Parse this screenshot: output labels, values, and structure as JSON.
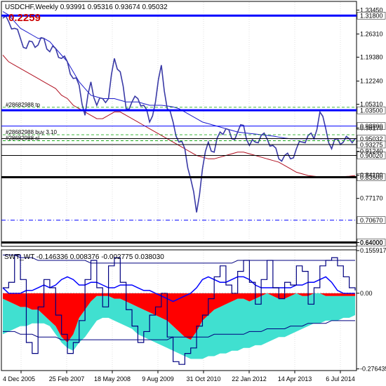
{
  "colors": {
    "price": "#3a3aa6",
    "ma_slow": "#1a1acc",
    "ma_fast": "#b01020",
    "level_blue": "#0000ff",
    "level_black": "#000000",
    "red_area": "#ff0000",
    "cyan_area": "#40e0d0",
    "osc_line": "#000080",
    "grid": "#c0c0c0",
    "badge_bg": "#ffffff",
    "badge_text": "#000000",
    "label_text": "#000000"
  },
  "header": {
    "symbol_line": "USDCHF,Weekly  0.93991 0.95316 0.93674 0.95032",
    "big_value": "0.2259",
    "indicator_line": "SWT_WT -0.146336 0.008376 -0.002775 0.038030"
  },
  "chart_data": [
    {
      "type": "line",
      "title": "USDCHF,Weekly",
      "ylim": [
        0.6306,
        1.3583
      ],
      "price_scale_labels": [
        "1.33450",
        "1.26310",
        "1.19380",
        "1.12240",
        "1.05310",
        "0.98170",
        "0.91240",
        "0.84100",
        "0.77170",
        "0.64000"
      ],
      "x_tick_labels": [
        "4 Dec 2005",
        "25 Feb 2007",
        "18 May 2008",
        "9 Aug 2009",
        "31 Oct 2010",
        "22 Jan 2012",
        "14 Apr 2013",
        "6 Jul 2014"
      ],
      "horizontal_levels": [
        {
          "price": 1.318,
          "label": "1.31800",
          "color": "#0000ff",
          "style": "solid"
        },
        {
          "price": 1.035,
          "label": "1.03500",
          "color": "#0000ff",
          "style": "solid"
        },
        {
          "price": 0.988,
          "label": "0.98800",
          "color": "#0000ff",
          "style": "solid"
        },
        {
          "price": 0.9503,
          "label": "0.95032",
          "color": "#000000",
          "style": "solid"
        },
        {
          "price": 0.9327,
          "label": "0.93275",
          "color": "#000000",
          "style": "solid"
        },
        {
          "price": 0.9002,
          "label": "0.90020",
          "color": "#000000",
          "style": "solid"
        },
        {
          "price": 0.835,
          "label": "0.83500",
          "color": "#000000",
          "style": "solid"
        },
        {
          "price": 0.7067,
          "label": "0.70670",
          "color": "#0000ff",
          "style": "dashdot"
        },
        {
          "price": 0.64,
          "label": "0.64000",
          "color": "#000000",
          "style": "solid"
        }
      ],
      "annotations": [
        {
          "text": "#28682988 tp",
          "price": 1.044
        },
        {
          "text": "#28682988 buy 3.10",
          "price": 0.962
        },
        {
          "text": "#28682988 sl",
          "price": 0.944
        }
      ],
      "series": [
        {
          "values": [
            1.31,
            1.3,
            1.28,
            1.25,
            1.22,
            1.24,
            1.23,
            1.25,
            1.21,
            1.22,
            1.19,
            1.18,
            1.13,
            1.11,
            1.02,
            1.12,
            1.05,
            1.07,
            1.07,
            1.19,
            1.15,
            1.04,
            1.06,
            1.07,
            1.05,
            1.0,
            1.06,
            1.17,
            1.04,
            1.0,
            0.94,
            0.92,
            0.83,
            0.73,
            0.86,
            0.94,
            0.91,
            0.97,
            0.98,
            0.95,
            0.97,
            0.99,
            0.93,
            0.94,
            0.96,
            0.95,
            0.93,
            0.89,
            0.9,
            0.89,
            0.92,
            0.94,
            0.96,
            0.95,
            1.03,
            0.98,
            0.92,
            0.95,
            0.94,
            0.95,
            0.95
          ]
        },
        {
          "values": [
            1.33,
            1.32,
            1.3,
            1.28,
            1.27,
            1.26,
            1.25,
            1.25,
            1.24,
            1.22,
            1.2,
            1.18,
            1.15,
            1.12,
            1.1,
            1.08,
            1.075,
            1.07,
            1.07,
            1.07,
            1.065,
            1.06,
            1.06,
            1.06,
            1.055,
            1.05,
            1.05,
            1.05,
            1.048,
            1.045,
            1.04,
            1.03,
            1.02,
            1.01,
            1.0,
            0.995,
            0.99,
            0.985,
            0.98,
            0.975,
            0.97,
            0.968,
            0.966,
            0.964,
            0.962,
            0.96,
            0.958,
            0.955,
            0.952,
            0.95,
            0.95,
            0.95,
            0.95,
            0.95,
            0.95,
            0.95,
            0.95,
            0.95,
            0.95,
            0.95,
            0.95
          ]
        },
        {
          "values": [
            1.2,
            1.18,
            1.17,
            1.16,
            1.15,
            1.14,
            1.13,
            1.12,
            1.11,
            1.1,
            1.08,
            1.07,
            1.05,
            1.04,
            1.03,
            1.02,
            1.01,
            1.01,
            1.02,
            1.03,
            1.03,
            1.02,
            1.01,
            1.0,
            0.99,
            0.98,
            0.97,
            0.96,
            0.95,
            0.94,
            0.93,
            0.92,
            0.91,
            0.9,
            0.895,
            0.89,
            0.89,
            0.895,
            0.9,
            0.905,
            0.91,
            0.91,
            0.905,
            0.9,
            0.895,
            0.89,
            0.885,
            0.88,
            0.87,
            0.86,
            0.85,
            0.845,
            0.84,
            0.838,
            0.836,
            0.835,
            0.835,
            0.836,
            0.837,
            0.838,
            0.84
          ]
        }
      ]
    },
    {
      "type": "area",
      "title": "SWT_WT",
      "ylim": [
        -0.28,
        0.156
      ],
      "scale_labels": [
        "0.155917",
        "0.00",
        "-0.276435"
      ],
      "series": [
        {
          "values": [
            -0.02,
            -0.03,
            -0.04,
            -0.05,
            -0.05,
            -0.06,
            -0.06,
            -0.08,
            -0.1,
            -0.12,
            -0.16,
            -0.18,
            -0.15,
            -0.09,
            -0.06,
            -0.03,
            -0.01,
            -0.01,
            -0.01,
            -0.02,
            -0.02,
            -0.03,
            -0.04,
            -0.05,
            -0.06,
            -0.07,
            -0.08,
            -0.09,
            -0.1,
            -0.12,
            -0.14,
            -0.16,
            -0.17,
            -0.14,
            -0.1,
            -0.08,
            -0.06,
            -0.05,
            -0.04,
            -0.03,
            -0.02,
            -0.02,
            -0.03,
            -0.02,
            -0.01,
            0.0,
            -0.01,
            -0.02,
            -0.02,
            -0.01,
            0.0,
            -0.01,
            -0.01,
            0.0,
            0.0,
            -0.01,
            -0.01,
            -0.01,
            -0.01,
            -0.01,
            -0.01
          ]
        },
        {
          "values": [
            -0.15,
            -0.14,
            -0.13,
            -0.12,
            -0.12,
            -0.11,
            -0.11,
            -0.11,
            -0.12,
            -0.15,
            -0.18,
            -0.2,
            -0.21,
            -0.18,
            -0.16,
            -0.13,
            -0.1,
            -0.09,
            -0.09,
            -0.1,
            -0.11,
            -0.12,
            -0.13,
            -0.15,
            -0.16,
            -0.17,
            -0.18,
            -0.19,
            -0.2,
            -0.21,
            -0.22,
            -0.23,
            -0.24,
            -0.24,
            -0.24,
            -0.23,
            -0.23,
            -0.22,
            -0.22,
            -0.21,
            -0.21,
            -0.2,
            -0.2,
            -0.19,
            -0.19,
            -0.18,
            -0.17,
            -0.16,
            -0.16,
            -0.15,
            -0.14,
            -0.13,
            -0.12,
            -0.11,
            -0.11,
            -0.1,
            -0.1,
            -0.1,
            -0.09,
            -0.09,
            -0.08
          ]
        },
        {
          "values": [
            0.02,
            0.04,
            0.14,
            0.05,
            -0.18,
            -0.22,
            -0.05,
            0.05,
            0.02,
            -0.08,
            -0.15,
            -0.22,
            -0.18,
            -0.1,
            0.05,
            0.12,
            0.02,
            -0.05,
            0.1,
            0.13,
            0.04,
            -0.06,
            -0.12,
            -0.18,
            -0.14,
            -0.08,
            -0.05,
            0.0,
            -0.16,
            -0.25,
            -0.26,
            -0.22,
            -0.2,
            -0.12,
            -0.08,
            -0.02,
            0.06,
            0.1,
            0.03,
            0.0,
            0.08,
            0.12,
            0.04,
            -0.04,
            0.05,
            0.12,
            0.02,
            -0.02,
            0.04,
            0.03,
            0.1,
            0.08,
            -0.04,
            0.02,
            0.1,
            0.12,
            0.13,
            0.1,
            0.06,
            0.02,
            0.01
          ]
        },
        {
          "values": [
            0.02,
            0.0,
            0.0,
            0.0,
            0.01,
            0.01,
            0.02,
            0.03,
            0.02,
            0.03,
            0.05,
            0.06,
            0.05,
            0.03,
            0.03,
            0.04,
            0.04,
            0.03,
            0.02,
            0.02,
            0.03,
            0.03,
            0.03,
            0.02,
            0.01,
            0.01,
            0.0,
            -0.01,
            -0.02,
            -0.03,
            -0.02,
            -0.01,
            0.0,
            0.02,
            0.05,
            0.06,
            0.05,
            0.04,
            0.04,
            0.05,
            0.06,
            0.06,
            0.05,
            0.03,
            0.02,
            0.02,
            0.02,
            0.02,
            0.02,
            0.02,
            0.03,
            0.03,
            0.04,
            0.04,
            0.05,
            0.06,
            0.04,
            0.01,
            0.0,
            0.0,
            0.0
          ]
        },
        {
          "values": [
            0.14,
            0.14,
            0.14,
            0.13,
            0.13,
            0.13,
            0.12,
            0.12,
            0.12,
            0.12,
            0.12,
            0.12,
            0.12,
            0.12,
            0.12,
            0.11,
            0.11,
            0.11,
            0.11,
            0.11,
            0.11,
            0.11,
            0.11,
            0.11,
            0.11,
            0.11,
            0.11,
            0.11,
            0.11,
            0.11,
            0.11,
            0.11,
            0.11,
            0.11,
            0.11,
            0.11,
            0.11,
            0.11,
            0.11,
            0.11,
            0.12,
            0.12,
            0.12,
            0.12,
            0.12,
            0.12,
            0.12,
            0.12,
            0.12,
            0.12,
            0.12,
            0.12,
            0.12,
            0.12,
            0.12,
            0.12,
            0.12,
            0.12,
            0.12,
            0.12,
            0.12
          ]
        },
        {
          "values": [
            -0.14,
            -0.14,
            -0.14,
            -0.15,
            -0.15,
            -0.15,
            -0.16,
            -0.16,
            -0.16,
            -0.16,
            -0.17,
            -0.17,
            -0.17,
            -0.17,
            -0.17,
            -0.17,
            -0.17,
            -0.17,
            -0.17,
            -0.17,
            -0.17,
            -0.17,
            -0.17,
            -0.17,
            -0.17,
            -0.17,
            -0.17,
            -0.17,
            -0.17,
            -0.16,
            -0.16,
            -0.16,
            -0.16,
            -0.16,
            -0.16,
            -0.16,
            -0.15,
            -0.15,
            -0.15,
            -0.15,
            -0.15,
            -0.15,
            -0.14,
            -0.14,
            -0.14,
            -0.13,
            -0.13,
            -0.13,
            -0.13,
            -0.12,
            -0.12,
            -0.12,
            -0.11,
            -0.11,
            -0.11,
            -0.11,
            -0.1,
            -0.1,
            -0.1,
            -0.1,
            -0.1
          ]
        }
      ]
    }
  ]
}
